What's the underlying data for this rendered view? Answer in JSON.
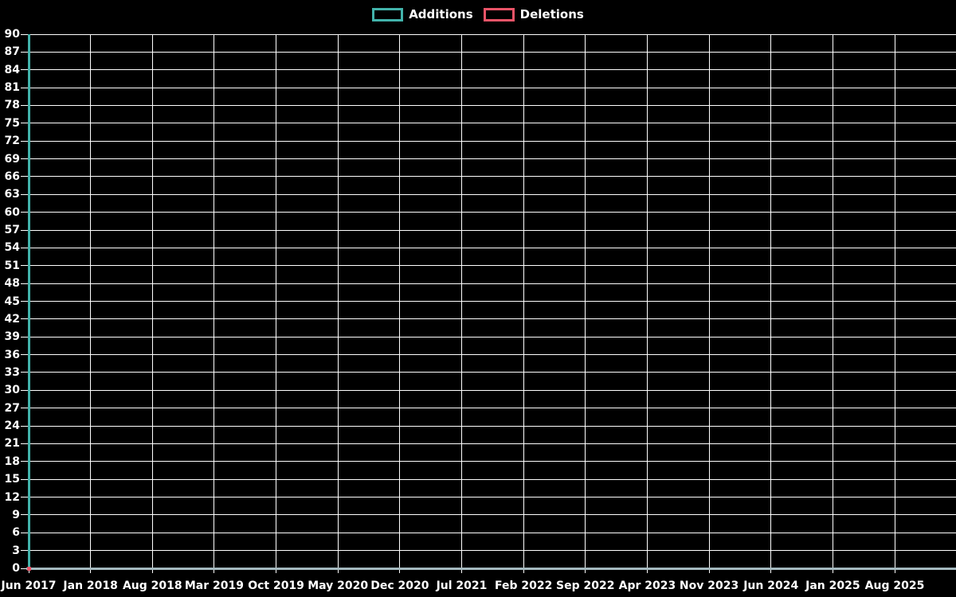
{
  "chart_data": {
    "type": "line",
    "title": "",
    "legend_position": "top-center",
    "grid": true,
    "background_color": "#000000",
    "grid_color": "#ffffff",
    "text_color": "#ffffff",
    "axis_line_color": "#a4b9bf",
    "legend": [
      {
        "label": "Additions",
        "color": "#42b3ab",
        "swatch": "teal-outlined-box"
      },
      {
        "label": "Deletions",
        "color": "#ed5468",
        "swatch": "pink-outlined-box"
      }
    ],
    "x_ticks": [
      "Jun 2017",
      "Jan 2018",
      "Aug 2018",
      "Mar 2019",
      "Oct 2019",
      "May 2020",
      "Dec 2020",
      "Jul 2021",
      "Feb 2022",
      "Sep 2022",
      "Apr 2023",
      "Nov 2023",
      "Jun 2024",
      "Jan 2025",
      "Aug 2025"
    ],
    "y_axis": {
      "min": 0,
      "max": 90,
      "step": 3,
      "ticks": [
        0,
        3,
        6,
        9,
        12,
        15,
        18,
        21,
        24,
        27,
        30,
        33,
        36,
        39,
        42,
        45,
        48,
        51,
        54,
        57,
        60,
        63,
        66,
        69,
        72,
        75,
        78,
        81,
        84,
        87,
        90
      ]
    },
    "series": [
      {
        "name": "Additions",
        "color": "#42b3ab",
        "points": [
          {
            "x": "Jun 2017",
            "y": 90
          }
        ]
      },
      {
        "name": "Deletions",
        "color": "#ed5468",
        "points": [
          {
            "x": "Jun 2017",
            "y": 0
          }
        ]
      }
    ]
  }
}
